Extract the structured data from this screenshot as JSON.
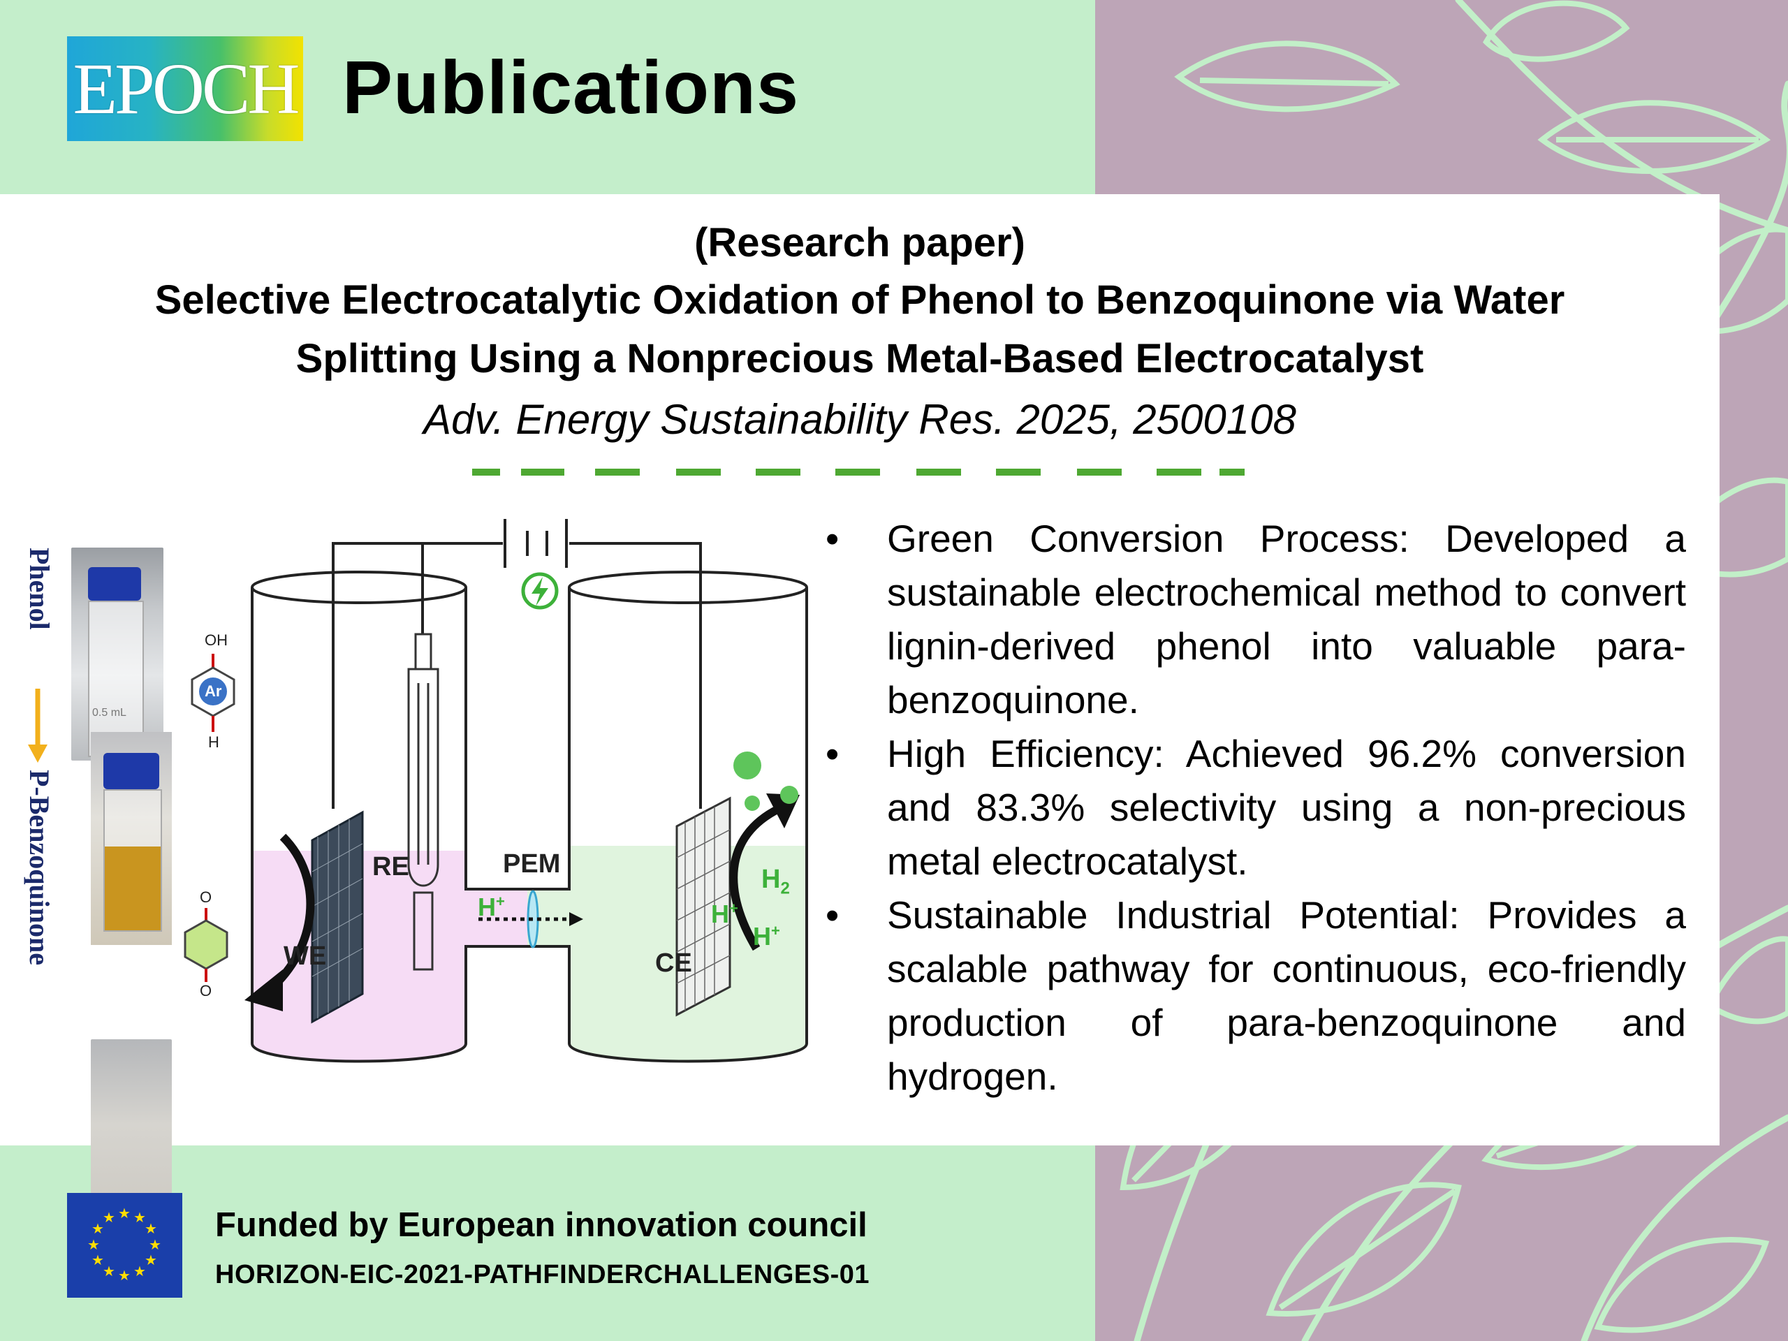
{
  "header": {
    "logo_text": "EPOCH",
    "title": "Publications"
  },
  "paper": {
    "type_label": "(Research paper)",
    "title_line1": "Selective Electrocatalytic Oxidation of Phenol to Benzoquinone via Water",
    "title_line2": "Splitting Using a Nonprecious Metal-Based Electrocatalyst",
    "citation": "Adv. Energy Sustainability Res. 2025, 2500108"
  },
  "figure": {
    "label_phenol": "Phenol",
    "label_benzoquinone": "P-Benzoquinone",
    "label_re": "RE",
    "label_we": "WE",
    "label_ce": "CE",
    "label_pem": "PEM",
    "label_h2": "H",
    "label_h2_sub": "2",
    "label_h_plus": "H",
    "label_plus": "+",
    "label_ar": "Ar",
    "label_oh": "OH",
    "label_h": "H",
    "label_o": "O",
    "vial_mark": "0.5 mL",
    "colors": {
      "anode": "#f6dcf5",
      "cathode": "#e0f4de",
      "green": "#3db13a",
      "arrow": "#111111"
    }
  },
  "highlights": [
    "Green Conversion Process: Developed a sustainable electrochemical method to convert lignin-derived phenol into valuable para-benzoquinone.",
    "High Efficiency: Achieved 96.2% conversion and 83.3% selectivity using a non-precious metal electrocatalyst.",
    "Sustainable Industrial Potential: Provides a scalable pathway for continuous, eco-friendly production of para-benzoquinone and hydrogen."
  ],
  "bullet_symbol": "•",
  "footer": {
    "funded_text": "Funded by European innovation council",
    "grant_code": "HORIZON-EIC-2021-PATHFINDERCHALLENGES-01"
  },
  "colors": {
    "background": "#c4eecb",
    "mauve": "#bda5b7",
    "leaf": "#c2efc8",
    "accent_dash": "#4ea832",
    "eu_blue": "#1a3faa",
    "eu_star": "#ffdd00"
  }
}
